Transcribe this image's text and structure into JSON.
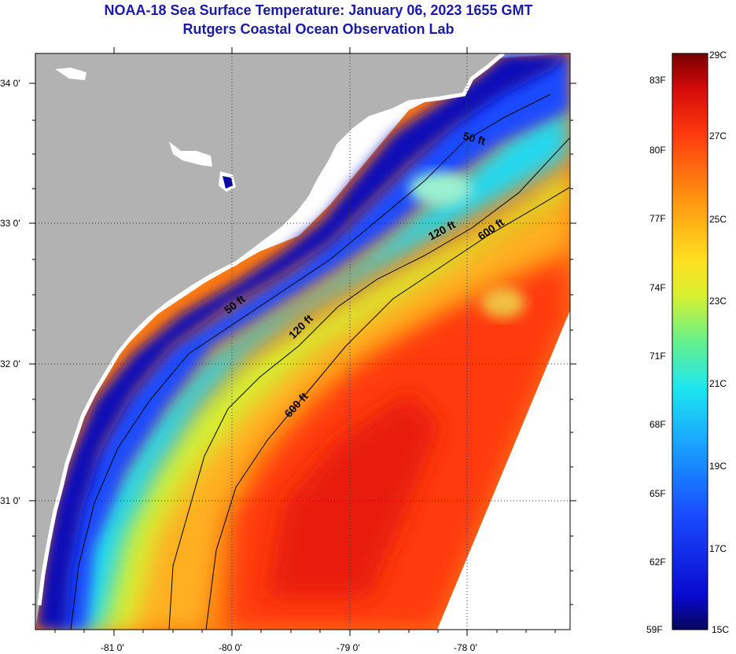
{
  "title": {
    "line1": "NOAA-18 Sea Surface Temperature:  January 06, 2023 1655 GMT",
    "line2": "Rutgers Coastal Ocean Observation Lab"
  },
  "map": {
    "lat_labels": [
      "34 0'",
      "33 0'",
      "32 0'",
      "31 0'"
    ],
    "lon_labels": [
      "-81 0'",
      "-80 0'",
      "-79 0'",
      "-78 0'"
    ],
    "contour_labels": [
      "50 ft",
      "120 ft",
      "600 ft",
      "50 ft",
      "120 ft",
      "600 ft"
    ],
    "colors": {
      "land": "#b2b2b2",
      "no_data": "#ffffff"
    }
  },
  "colorbar": {
    "fahrenheit_labels": [
      "83F",
      "80F",
      "77F",
      "74F",
      "71F",
      "68F",
      "65F",
      "62F",
      "59F"
    ],
    "celsius_labels": [
      "29C",
      "27C",
      "25C",
      "23C",
      "21C",
      "19C",
      "17C",
      "15C"
    ],
    "scale_celsius": [
      15,
      29
    ]
  }
}
